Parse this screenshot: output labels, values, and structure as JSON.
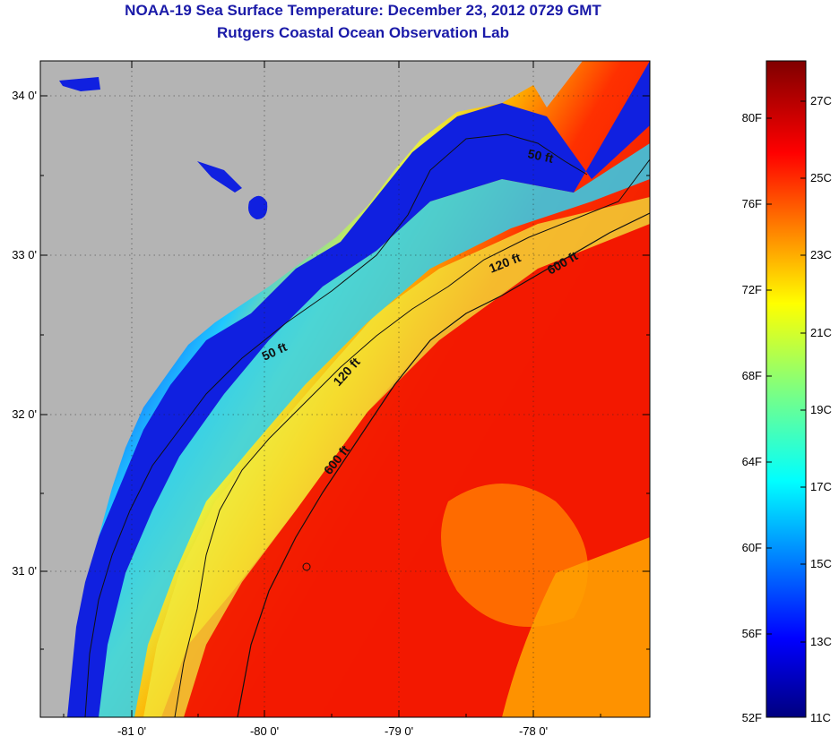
{
  "title": "NOAA-19 Sea Surface Temperature:  December 23, 2012 0729 GMT",
  "subtitle": "Rutgers Coastal Ocean Observation Lab",
  "map": {
    "lat_labels": [
      "34 0'",
      "33 0'",
      "32 0'",
      "31 0'"
    ],
    "lon_labels": [
      "-81 0'",
      "-80 0'",
      "-79 0'",
      "-78 0'"
    ],
    "contours": [
      {
        "label": "50 ft"
      },
      {
        "label": "50 ft"
      },
      {
        "label": "120 ft"
      },
      {
        "label": "120 ft"
      },
      {
        "label": "600 ft"
      },
      {
        "label": "600 ft"
      }
    ],
    "land_color": "#b4b4b4"
  },
  "colorbar": {
    "f_labels": [
      "80F",
      "76F",
      "72F",
      "68F",
      "64F",
      "60F",
      "56F",
      "52F"
    ],
    "c_labels": [
      "27C",
      "25C",
      "23C",
      "21C",
      "19C",
      "17C",
      "15C",
      "13C",
      "11C"
    ],
    "colors": [
      "#00007f",
      "#0000ff",
      "#007fff",
      "#00ffff",
      "#7fff7f",
      "#ffff00",
      "#ff7f00",
      "#ff0000",
      "#7f0000"
    ]
  }
}
